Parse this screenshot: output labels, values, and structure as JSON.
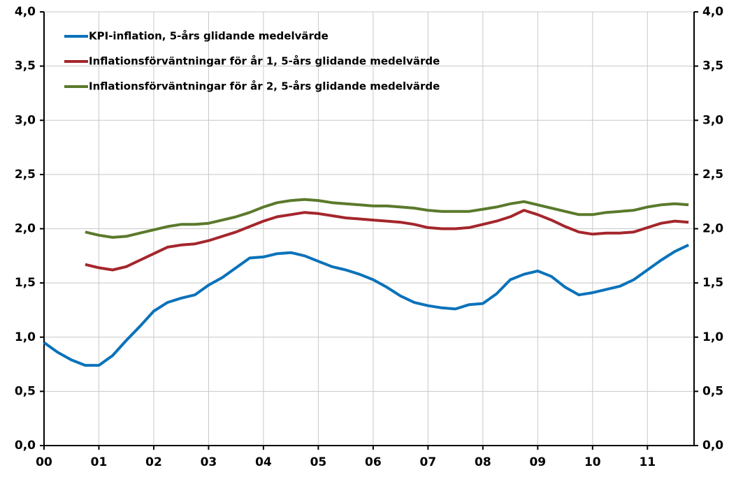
{
  "chart_data": {
    "type": "line",
    "categories": [
      "00",
      null,
      null,
      null,
      "01",
      null,
      null,
      null,
      "02",
      null,
      null,
      null,
      "03",
      null,
      null,
      null,
      "04",
      null,
      null,
      null,
      "05",
      null,
      null,
      null,
      "06",
      null,
      null,
      null,
      "07",
      null,
      null,
      null,
      "08",
      null,
      null,
      null,
      "09",
      null,
      null,
      null,
      "10",
      null,
      null,
      null,
      "11",
      null,
      null,
      null
    ],
    "series": [
      {
        "name": "KPI-inflation, 5-års glidande medelvärde",
        "color": "#0a72ba",
        "values": [
          0.95,
          0.86,
          0.79,
          0.74,
          0.74,
          0.83,
          0.97,
          1.1,
          1.24,
          1.32,
          1.36,
          1.39,
          1.48,
          1.55,
          1.64,
          1.73,
          1.74,
          1.77,
          1.78,
          1.75,
          1.7,
          1.65,
          1.62,
          1.58,
          1.53,
          1.46,
          1.38,
          1.32,
          1.29,
          1.27,
          1.26,
          1.3,
          1.31,
          1.4,
          1.53,
          1.58,
          1.61,
          1.56,
          1.46,
          1.39,
          1.41,
          1.44,
          1.47,
          1.53,
          1.62,
          1.71,
          1.79,
          1.85
        ]
      },
      {
        "name": "Inflationsförväntningar för år 1, 5-års glidande medelvärde",
        "color": "#a4262c",
        "values": [
          null,
          null,
          null,
          1.67,
          1.64,
          1.62,
          1.65,
          1.71,
          1.77,
          1.83,
          1.85,
          1.86,
          1.89,
          1.93,
          1.97,
          2.02,
          2.07,
          2.11,
          2.13,
          2.15,
          2.14,
          2.12,
          2.1,
          2.09,
          2.08,
          2.07,
          2.06,
          2.04,
          2.01,
          2.0,
          2.0,
          2.01,
          2.04,
          2.07,
          2.11,
          2.17,
          2.13,
          2.08,
          2.02,
          1.97,
          1.95,
          1.96,
          1.96,
          1.97,
          2.01,
          2.05,
          2.07,
          2.06
        ]
      },
      {
        "name": "Inflationsförväntningar för år 2, 5-års glidande medelvärde",
        "color": "#5a7a2b",
        "values": [
          null,
          null,
          null,
          1.97,
          1.94,
          1.92,
          1.93,
          1.96,
          1.99,
          2.02,
          2.04,
          2.04,
          2.05,
          2.08,
          2.11,
          2.15,
          2.2,
          2.24,
          2.26,
          2.27,
          2.26,
          2.24,
          2.23,
          2.22,
          2.21,
          2.21,
          2.2,
          2.19,
          2.17,
          2.16,
          2.16,
          2.16,
          2.18,
          2.2,
          2.23,
          2.25,
          2.22,
          2.19,
          2.16,
          2.13,
          2.13,
          2.15,
          2.16,
          2.17,
          2.2,
          2.22,
          2.23,
          2.22
        ]
      }
    ],
    "ylim": [
      0,
      4
    ],
    "yticks": [
      {
        "value": 0,
        "label": "0,0"
      },
      {
        "value": 0.5,
        "label": "0,5"
      },
      {
        "value": 1,
        "label": "1,0"
      },
      {
        "value": 1.5,
        "label": "1,5"
      },
      {
        "value": 2,
        "label": "2,0"
      },
      {
        "value": 2.5,
        "label": "2,5"
      },
      {
        "value": 3,
        "label": "3,0"
      },
      {
        "value": 3.5,
        "label": "3,5"
      },
      {
        "value": 4,
        "label": "4,0"
      }
    ],
    "grid": true,
    "legend": "upper left"
  }
}
